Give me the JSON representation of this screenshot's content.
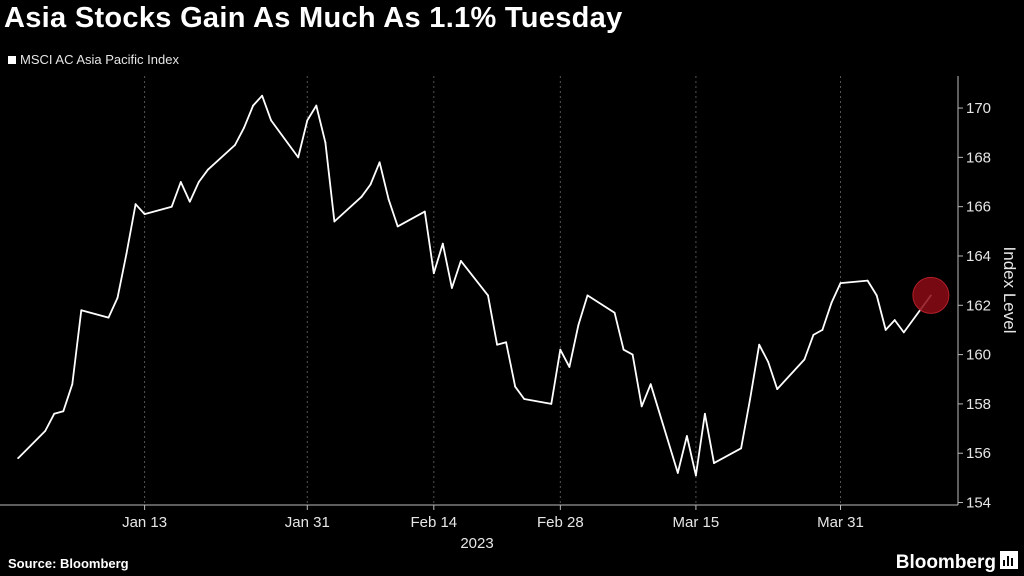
{
  "title": "Asia Stocks Gain As Much As 1.1% Tuesday",
  "legend": {
    "label": "MSCI AC Asia Pacific Index"
  },
  "footer": {
    "source": "Source: Bloomberg",
    "brand": "Bloomberg"
  },
  "chart_data": {
    "type": "line",
    "title": "Asia Stocks Gain As Much As 1.1% Tuesday",
    "xlabel": "2023",
    "ylabel": "Index Level",
    "ylim": [
      153.9,
      171.3
    ],
    "xlim": [
      "2022-12-28",
      "2023-04-13"
    ],
    "yticks": [
      154,
      156,
      158,
      160,
      162,
      164,
      166,
      168,
      170
    ],
    "xticks": [
      {
        "label": "Jan 13",
        "date": "2023-01-13"
      },
      {
        "label": "Jan 31",
        "date": "2023-01-31"
      },
      {
        "label": "Feb 14",
        "date": "2023-02-14"
      },
      {
        "label": "Feb 28",
        "date": "2023-02-28"
      },
      {
        "label": "Mar 15",
        "date": "2023-03-15"
      },
      {
        "label": "Mar 31",
        "date": "2023-03-31"
      }
    ],
    "grid": "vertical dashed at x ticks",
    "colors": {
      "line": "#ffffff",
      "highlight": "#8b0a14",
      "background": "#000000"
    },
    "series": [
      {
        "name": "MSCI AC Asia Pacific Index",
        "points": [
          {
            "x": "2022-12-30",
            "y": 155.8
          },
          {
            "x": "2023-01-02",
            "y": 156.9
          },
          {
            "x": "2023-01-03",
            "y": 157.6
          },
          {
            "x": "2023-01-04",
            "y": 157.7
          },
          {
            "x": "2023-01-05",
            "y": 158.8
          },
          {
            "x": "2023-01-06",
            "y": 161.8
          },
          {
            "x": "2023-01-09",
            "y": 161.5
          },
          {
            "x": "2023-01-10",
            "y": 162.3
          },
          {
            "x": "2023-01-11",
            "y": 164.1
          },
          {
            "x": "2023-01-12",
            "y": 166.1
          },
          {
            "x": "2023-01-13",
            "y": 165.7
          },
          {
            "x": "2023-01-16",
            "y": 166.0
          },
          {
            "x": "2023-01-17",
            "y": 167.0
          },
          {
            "x": "2023-01-18",
            "y": 166.2
          },
          {
            "x": "2023-01-19",
            "y": 167.0
          },
          {
            "x": "2023-01-20",
            "y": 167.5
          },
          {
            "x": "2023-01-23",
            "y": 168.5
          },
          {
            "x": "2023-01-24",
            "y": 169.2
          },
          {
            "x": "2023-01-25",
            "y": 170.1
          },
          {
            "x": "2023-01-26",
            "y": 170.5
          },
          {
            "x": "2023-01-27",
            "y": 169.5
          },
          {
            "x": "2023-01-30",
            "y": 168.0
          },
          {
            "x": "2023-01-31",
            "y": 169.5
          },
          {
            "x": "2023-02-01",
            "y": 170.1
          },
          {
            "x": "2023-02-02",
            "y": 168.6
          },
          {
            "x": "2023-02-03",
            "y": 165.4
          },
          {
            "x": "2023-02-06",
            "y": 166.4
          },
          {
            "x": "2023-02-07",
            "y": 166.9
          },
          {
            "x": "2023-02-08",
            "y": 167.8
          },
          {
            "x": "2023-02-09",
            "y": 166.3
          },
          {
            "x": "2023-02-10",
            "y": 165.2
          },
          {
            "x": "2023-02-13",
            "y": 165.8
          },
          {
            "x": "2023-02-14",
            "y": 163.3
          },
          {
            "x": "2023-02-15",
            "y": 164.5
          },
          {
            "x": "2023-02-16",
            "y": 162.7
          },
          {
            "x": "2023-02-17",
            "y": 163.8
          },
          {
            "x": "2023-02-20",
            "y": 162.4
          },
          {
            "x": "2023-02-21",
            "y": 160.4
          },
          {
            "x": "2023-02-22",
            "y": 160.5
          },
          {
            "x": "2023-02-23",
            "y": 158.7
          },
          {
            "x": "2023-02-24",
            "y": 158.2
          },
          {
            "x": "2023-02-27",
            "y": 158.0
          },
          {
            "x": "2023-02-28",
            "y": 160.2
          },
          {
            "x": "2023-03-01",
            "y": 159.5
          },
          {
            "x": "2023-03-02",
            "y": 161.2
          },
          {
            "x": "2023-03-03",
            "y": 162.4
          },
          {
            "x": "2023-03-06",
            "y": 161.7
          },
          {
            "x": "2023-03-07",
            "y": 160.2
          },
          {
            "x": "2023-03-08",
            "y": 160.0
          },
          {
            "x": "2023-03-09",
            "y": 157.9
          },
          {
            "x": "2023-03-10",
            "y": 158.8
          },
          {
            "x": "2023-03-13",
            "y": 155.2
          },
          {
            "x": "2023-03-14",
            "y": 156.7
          },
          {
            "x": "2023-03-15",
            "y": 155.1
          },
          {
            "x": "2023-03-16",
            "y": 157.6
          },
          {
            "x": "2023-03-17",
            "y": 155.6
          },
          {
            "x": "2023-03-20",
            "y": 156.2
          },
          {
            "x": "2023-03-21",
            "y": 158.2
          },
          {
            "x": "2023-03-22",
            "y": 160.4
          },
          {
            "x": "2023-03-23",
            "y": 159.7
          },
          {
            "x": "2023-03-24",
            "y": 158.6
          },
          {
            "x": "2023-03-27",
            "y": 159.8
          },
          {
            "x": "2023-03-28",
            "y": 160.8
          },
          {
            "x": "2023-03-29",
            "y": 161.0
          },
          {
            "x": "2023-03-30",
            "y": 162.1
          },
          {
            "x": "2023-03-31",
            "y": 162.9
          },
          {
            "x": "2023-04-03",
            "y": 163.0
          },
          {
            "x": "2023-04-04",
            "y": 162.4
          },
          {
            "x": "2023-04-05",
            "y": 161.0
          },
          {
            "x": "2023-04-06",
            "y": 161.4
          },
          {
            "x": "2023-04-07",
            "y": 160.9
          },
          {
            "x": "2023-04-10",
            "y": 162.4
          }
        ]
      }
    ],
    "highlight": {
      "x": "2023-04-10",
      "y": 162.4
    }
  }
}
